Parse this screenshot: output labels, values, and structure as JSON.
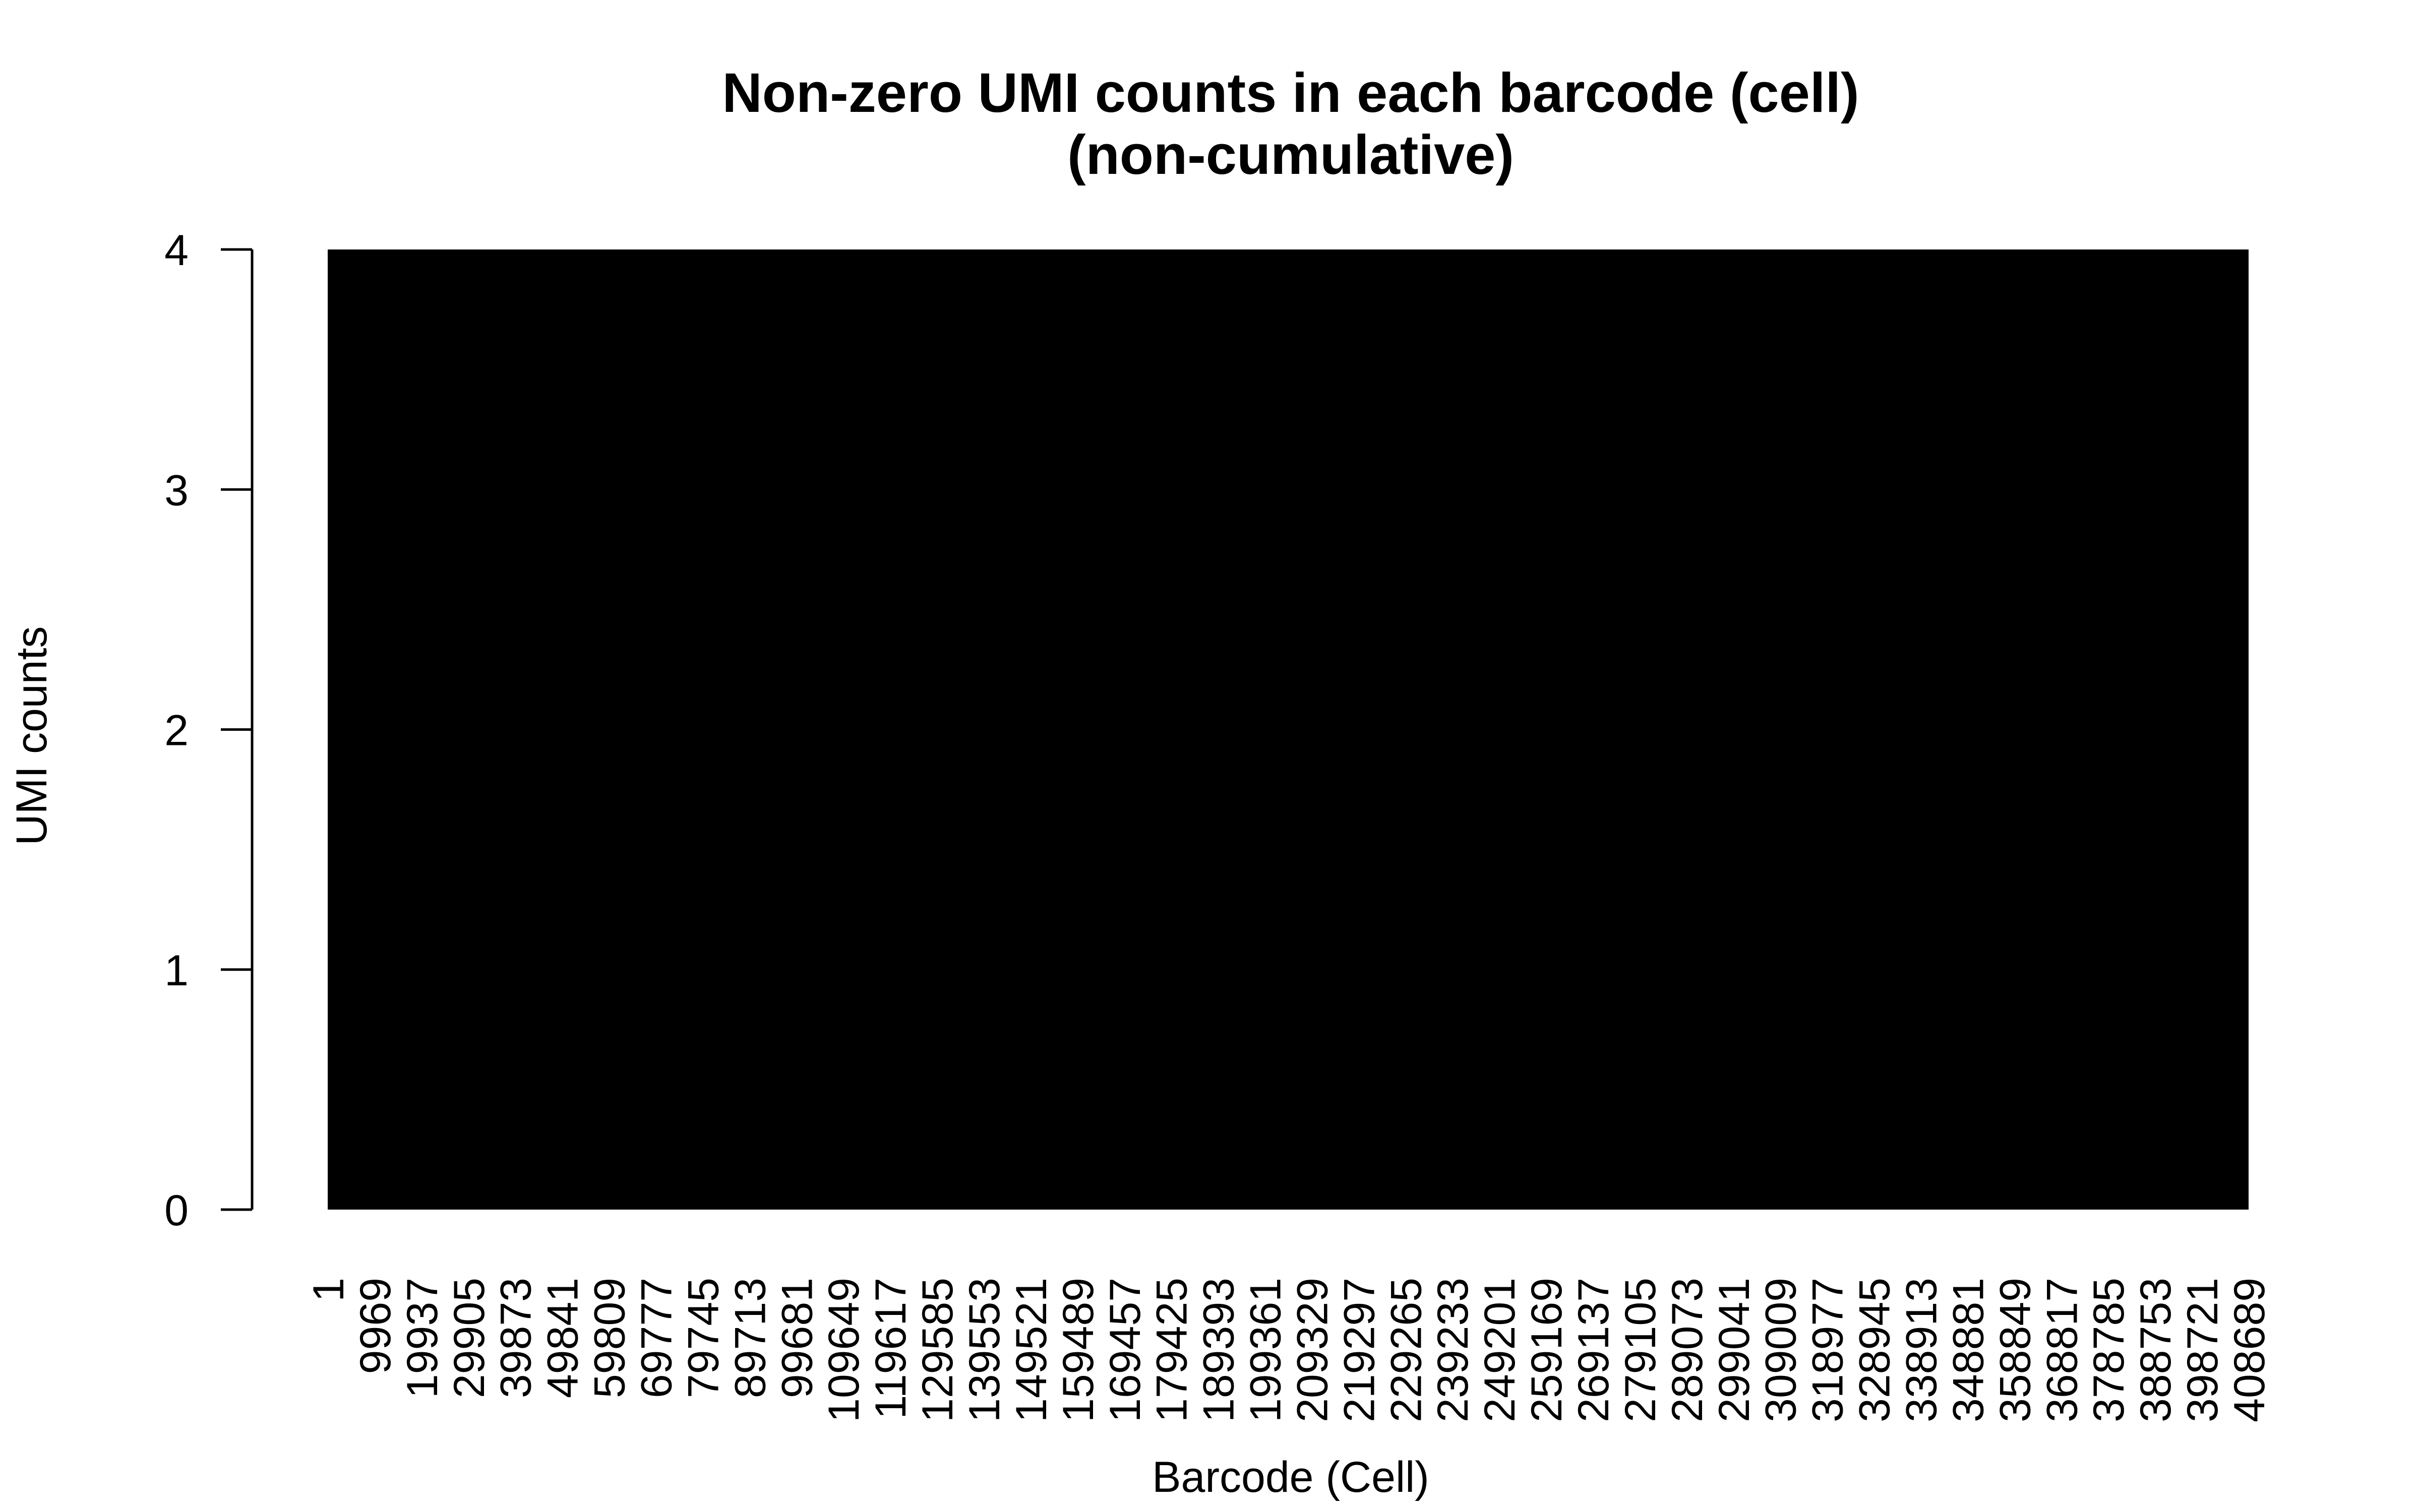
{
  "chart_data": {
    "type": "bar",
    "title": "Non-zero UMI counts in each barcode (cell)",
    "subtitle": "(non-cumulative)",
    "xlabel": "Barcode (Cell)",
    "ylabel": "UMI counts",
    "ylim": [
      0,
      4
    ],
    "yticks": [
      "0",
      "1",
      "2",
      "3",
      "4"
    ],
    "categories": [
      "1",
      "9969",
      "19937",
      "29905",
      "39873",
      "49841",
      "59809",
      "69777",
      "79745",
      "89713",
      "99681",
      "109649",
      "119617",
      "129585",
      "139553",
      "149521",
      "159489",
      "169457",
      "179425",
      "189393",
      "199361",
      "209329",
      "219297",
      "229265",
      "239233",
      "249201",
      "259169",
      "269137",
      "279105",
      "289073",
      "299041",
      "309009",
      "318977",
      "328945",
      "338913",
      "348881",
      "358849",
      "368817",
      "378785",
      "388753",
      "398721",
      "408689"
    ],
    "values": [
      4,
      4,
      4,
      4,
      4,
      4,
      4,
      4,
      4,
      4,
      4,
      4,
      4,
      4,
      4,
      4,
      4,
      4,
      4,
      4,
      4,
      4,
      4,
      4,
      4,
      4,
      4,
      4,
      4,
      4,
      4,
      4,
      4,
      4,
      4,
      4,
      4,
      4,
      4,
      4,
      4,
      4
    ],
    "bar_color": "#000000",
    "grid": false,
    "legend": "none"
  }
}
